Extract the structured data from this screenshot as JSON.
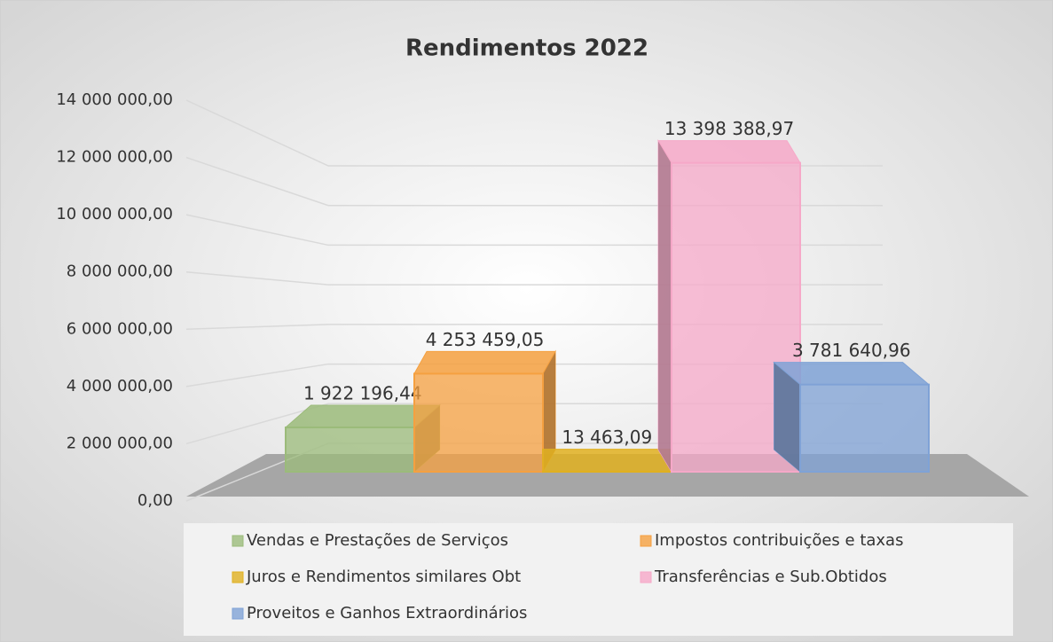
{
  "chart_data": {
    "type": "bar3d",
    "title": "Rendimentos 2022",
    "series": [
      {
        "name": "Vendas e Prestações de Serviços",
        "color": "#9bbb7a",
        "values": [
          1922196.44
        ],
        "value_labels": [
          "1 922 196,44"
        ]
      },
      {
        "name": "Impostos contribuições e taxas",
        "color": "#f5a040",
        "values": [
          4253459.05
        ],
        "value_labels": [
          "4 253 459,05"
        ]
      },
      {
        "name": "Juros e Rendimentos similares Obt",
        "color": "#e0b020",
        "values": [
          13463.09
        ],
        "value_labels": [
          "13 463,09"
        ]
      },
      {
        "name": "Transferências e Sub.Obtidos",
        "color": "#f6a8c8",
        "values": [
          13398388.97
        ],
        "value_labels": [
          "13 398 388,97"
        ]
      },
      {
        "name": "Proveitos e Ganhos Extraordinários",
        "color": "#7fa2d6",
        "values": [
          3781640.96
        ],
        "value_labels": [
          "3 781 640,96"
        ]
      }
    ],
    "ylim": [
      0,
      14000000
    ],
    "yticks": [
      {
        "value": 0,
        "label": "0,00"
      },
      {
        "value": 2000000,
        "label": "2 000 000,00"
      },
      {
        "value": 4000000,
        "label": "4 000 000,00"
      },
      {
        "value": 6000000,
        "label": "6 000 000,00"
      },
      {
        "value": 8000000,
        "label": "8 000 000,00"
      },
      {
        "value": 10000000,
        "label": "10 000 000,00"
      },
      {
        "value": 12000000,
        "label": "12 000 000,00"
      },
      {
        "value": 14000000,
        "label": "14 000 000,00"
      }
    ],
    "grid": true,
    "legend": "bottom"
  }
}
